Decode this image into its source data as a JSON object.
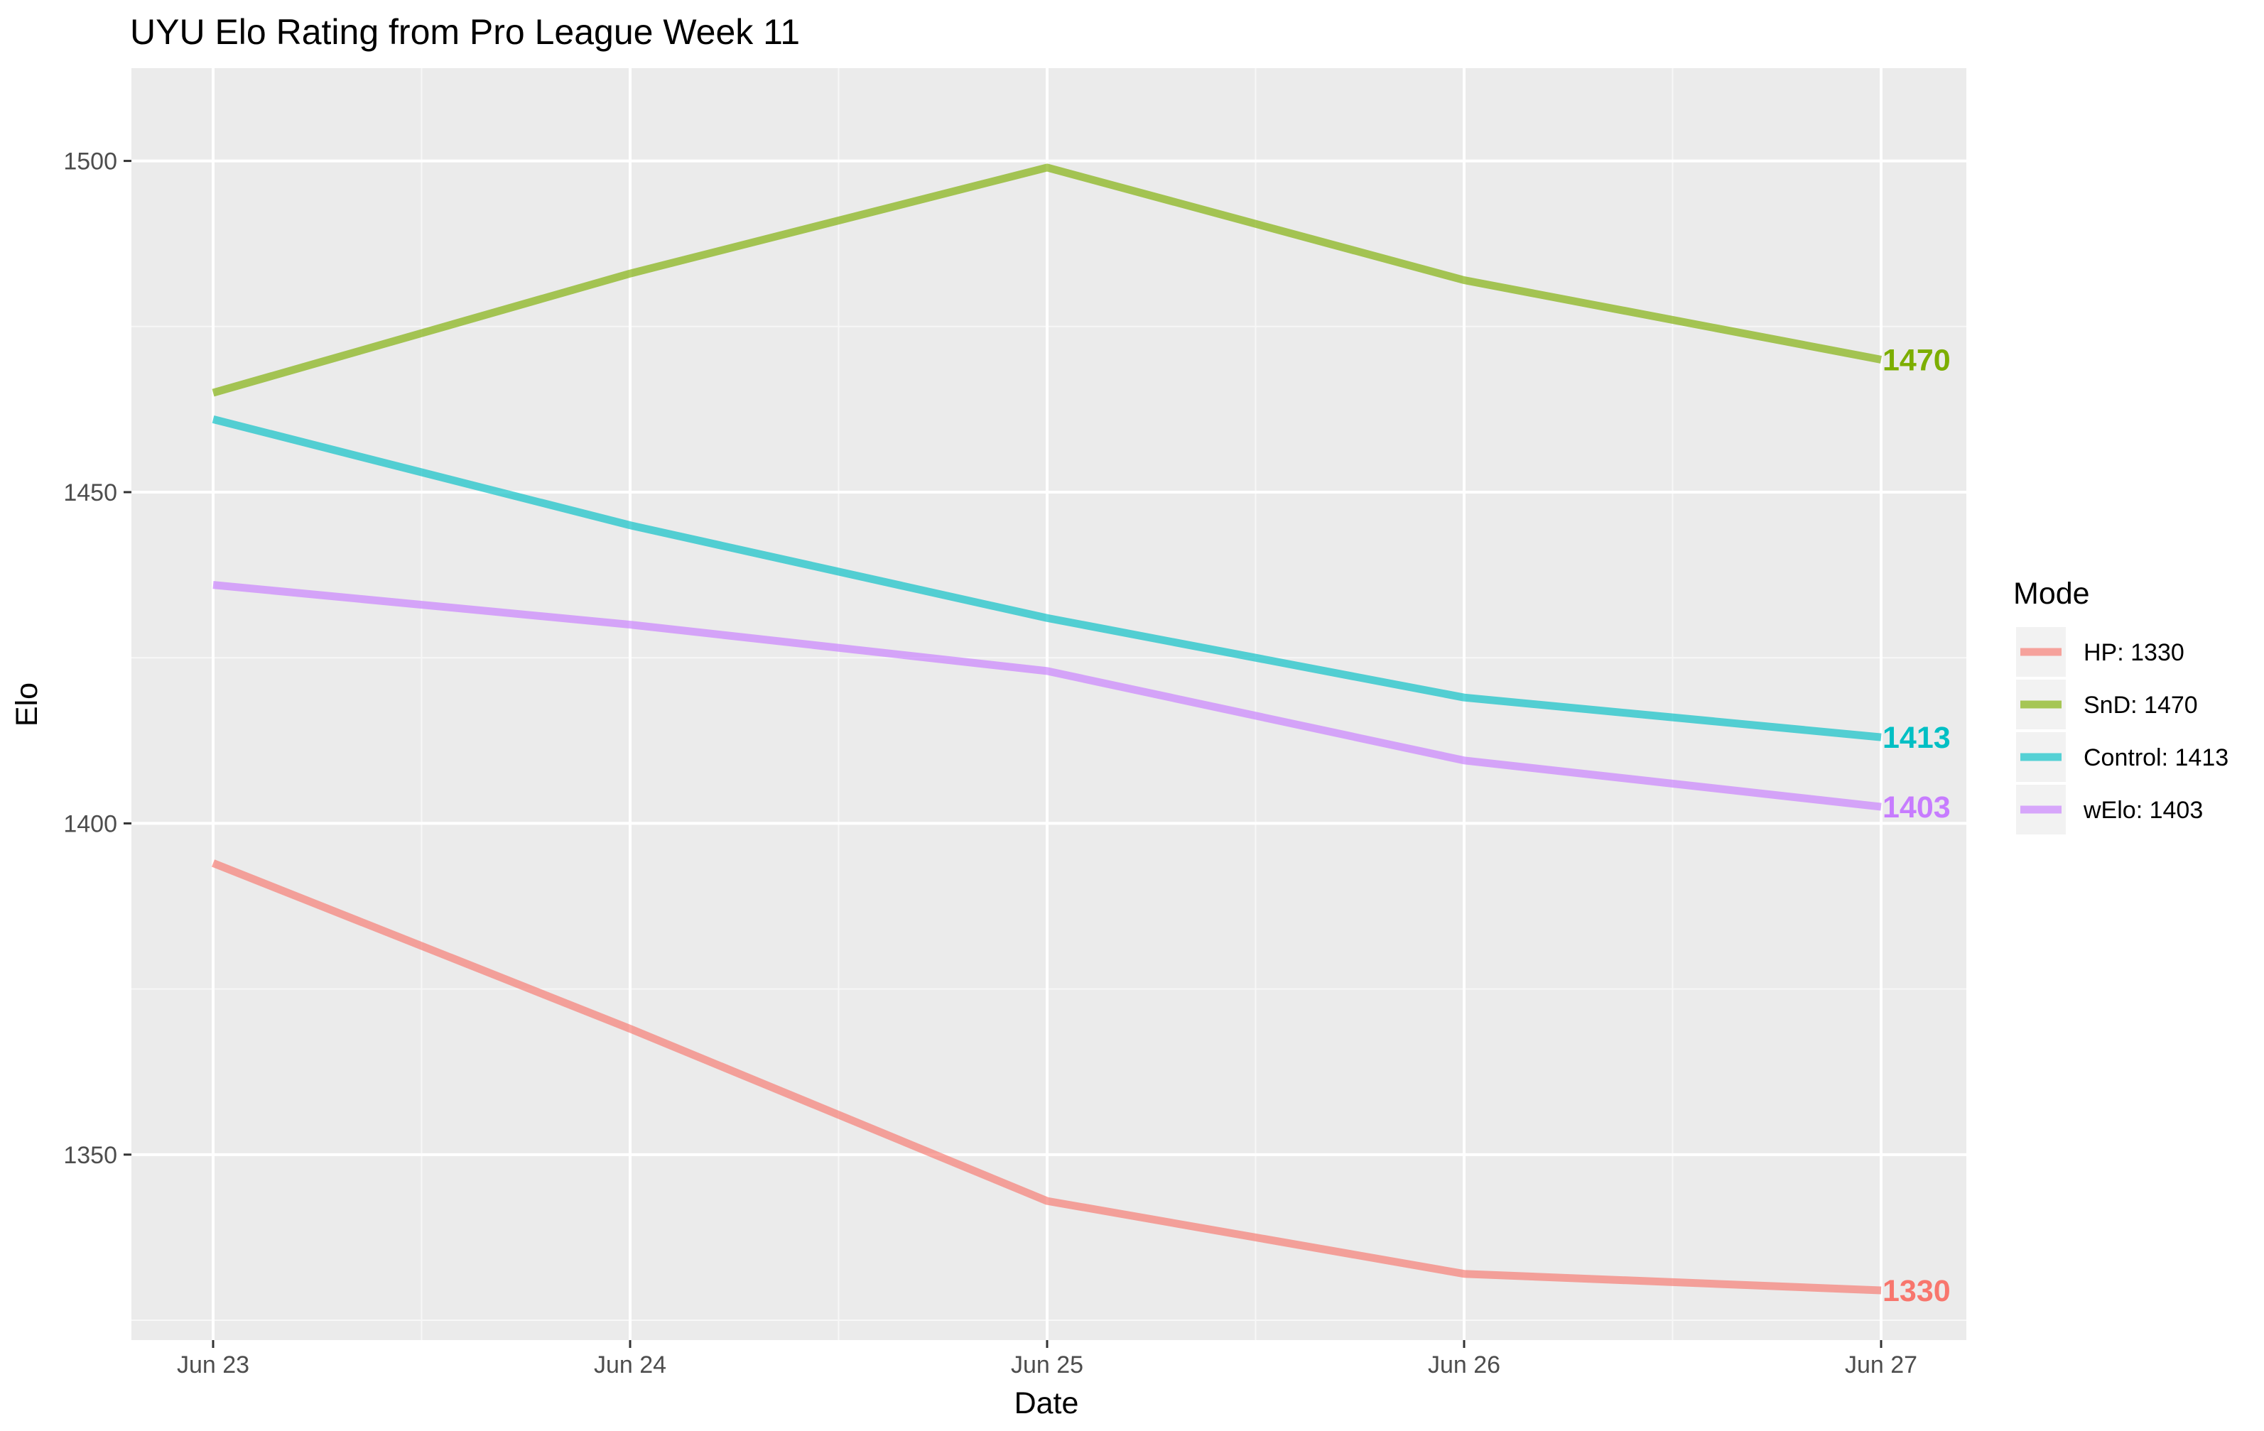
{
  "chart_data": {
    "type": "line",
    "title": "UYU Elo Rating from Pro League Week 11",
    "xlabel": "Date",
    "ylabel": "Elo",
    "categories": [
      "Jun 23",
      "Jun 24",
      "Jun 25",
      "Jun 26",
      "Jun 27"
    ],
    "ylim": [
      1322,
      1514
    ],
    "yticks": [
      1350,
      1400,
      1450,
      1500
    ],
    "ytick_labels": [
      "1350",
      "1400",
      "1450",
      "1500"
    ],
    "grid": true,
    "legend": {
      "title": "Mode",
      "position": "right"
    },
    "series": [
      {
        "name": "HP: 1330",
        "color": "#f8766d",
        "end_label": "1330",
        "values": [
          1394,
          1369,
          1343,
          1332,
          1329.5
        ]
      },
      {
        "name": "SnD: 1470",
        "color": "#7cae00",
        "end_label": "1470",
        "values": [
          1465,
          1483,
          1499,
          1482,
          1470
        ]
      },
      {
        "name": "Control: 1413",
        "color": "#00bfc4",
        "end_label": "1413",
        "values": [
          1461,
          1445,
          1431,
          1419,
          1413
        ]
      },
      {
        "name": "wElo: 1403",
        "color": "#c77cff",
        "end_label": "1403",
        "values": [
          1436,
          1430,
          1423,
          1409.5,
          1402.5
        ]
      }
    ]
  }
}
